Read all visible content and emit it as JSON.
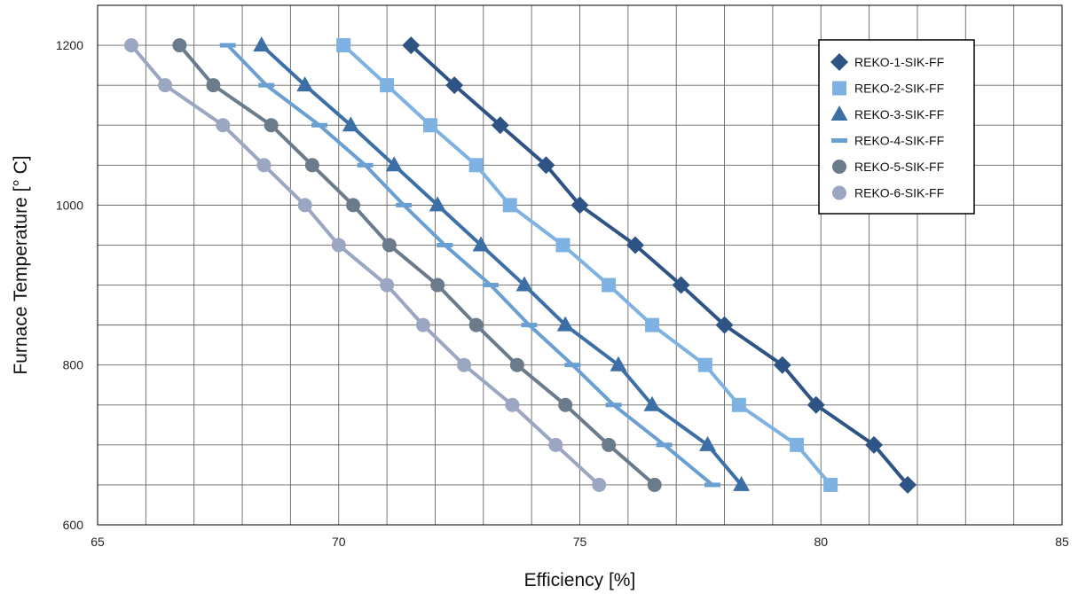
{
  "chart_data": {
    "type": "line",
    "xlabel": "Efficiency [%]",
    "ylabel": "Furnace Temperature [° C]",
    "xlim": [
      65,
      85
    ],
    "ylim": [
      600,
      1250
    ],
    "xticks": [
      65,
      70,
      75,
      80,
      85
    ],
    "yticks": [
      600,
      800,
      1000,
      1200
    ],
    "x_minor_step": 1,
    "y_minor_step": 50,
    "grid": true,
    "legend_position": "top-right",
    "y": [
      1200,
      1150,
      1100,
      1050,
      1000,
      950,
      900,
      850,
      800,
      750,
      700,
      650
    ],
    "series": [
      {
        "name": "REKO-1-SIK-FF",
        "marker": "diamond",
        "color": "#2e5486",
        "x": [
          71.5,
          72.4,
          73.35,
          74.3,
          75.0,
          76.15,
          77.1,
          78.0,
          79.2,
          79.9,
          81.1,
          81.8
        ]
      },
      {
        "name": "REKO-2-SIK-FF",
        "marker": "square",
        "color": "#7eb2e2",
        "x": [
          70.1,
          71.0,
          71.9,
          72.85,
          73.55,
          74.65,
          75.6,
          76.5,
          77.6,
          78.3,
          79.5,
          80.2
        ]
      },
      {
        "name": "REKO-3-SIK-FF",
        "marker": "triangle",
        "color": "#3c6fa6",
        "x": [
          68.4,
          69.3,
          70.25,
          71.15,
          72.05,
          72.95,
          73.85,
          74.7,
          75.8,
          76.5,
          77.65,
          78.35
        ]
      },
      {
        "name": "REKO-4-SIK-FF",
        "marker": "dash",
        "color": "#6a9fd2",
        "x": [
          67.7,
          68.5,
          69.6,
          70.55,
          71.35,
          72.2,
          73.15,
          73.95,
          74.85,
          75.7,
          76.75,
          77.75
        ]
      },
      {
        "name": "REKO-5-SIK-FF",
        "marker": "circle",
        "color": "#6b7b8c",
        "x": [
          66.7,
          67.4,
          68.6,
          69.45,
          70.3,
          71.05,
          72.05,
          72.85,
          73.7,
          74.7,
          75.6,
          76.55
        ]
      },
      {
        "name": "REKO-6-SIK-FF",
        "marker": "circle",
        "color": "#9aa6c2",
        "x": [
          65.7,
          66.4,
          67.6,
          68.45,
          69.3,
          70.0,
          71.0,
          71.75,
          72.6,
          73.6,
          74.5,
          75.4
        ]
      }
    ]
  }
}
